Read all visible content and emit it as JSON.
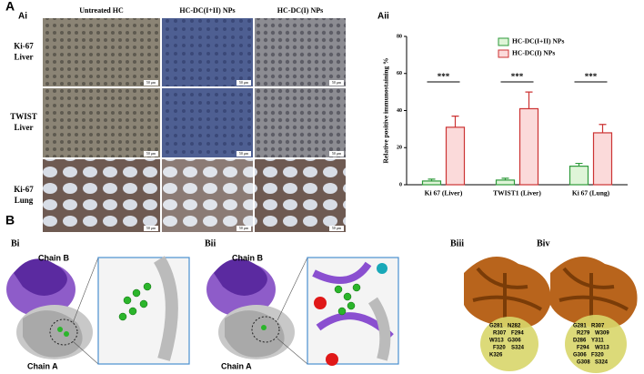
{
  "panel_a": {
    "label": "A",
    "sub_label": "Ai",
    "columns": [
      "Untreated HC",
      "HC-DC(I+II) NPs",
      "HC-DC(I) NPs"
    ],
    "rows": [
      {
        "marker": "Ki-67",
        "organ": "Liver"
      },
      {
        "marker": "TWIST",
        "organ": "Liver"
      },
      {
        "marker": "Ki-67",
        "organ": "Lung"
      }
    ],
    "scale_bar": "50 μm"
  },
  "chart_data": {
    "type": "bar",
    "panel_label": "Aii",
    "ylabel": "Relative positive immunostaining %",
    "categories": [
      "Ki 67 (Liver)",
      "TWIST1 (Liver)",
      "Ki 67 (Lung)"
    ],
    "series": [
      {
        "name": "HC-DC(I+II) NPs",
        "color": "#dff5d8",
        "edgecolor": "#2e9a3a",
        "values": [
          2,
          2.5,
          10
        ],
        "errors": [
          1,
          1,
          1.5
        ]
      },
      {
        "name": "HC-DC(I) NPs",
        "color": "#fbdada",
        "edgecolor": "#cc3333",
        "values": [
          31,
          41,
          28
        ],
        "errors": [
          6,
          9,
          4.5
        ]
      }
    ],
    "annotations": [
      "***",
      "***",
      "***"
    ],
    "ylim": [
      0,
      80
    ],
    "yticks": [
      0,
      20,
      40,
      60,
      80
    ],
    "legend": "upper right"
  },
  "panel_b": {
    "label": "B",
    "panels": [
      {
        "label": "Bi",
        "chain_b": "Chain B",
        "chain_a": "Chain A"
      },
      {
        "label": "Bii",
        "chain_b": "Chain B",
        "chain_a": "Chain A"
      },
      {
        "label": "Biii",
        "residues": [
          "G281",
          "N282",
          "R307",
          "F294",
          "W313",
          "G306",
          "F320",
          "S324",
          "K326"
        ]
      },
      {
        "label": "Biv",
        "residues": [
          "G281",
          "R307",
          "R279",
          "W309",
          "D286",
          "Y311",
          "F294",
          "W313",
          "G306",
          "F320",
          "G308",
          "S324"
        ]
      }
    ]
  }
}
